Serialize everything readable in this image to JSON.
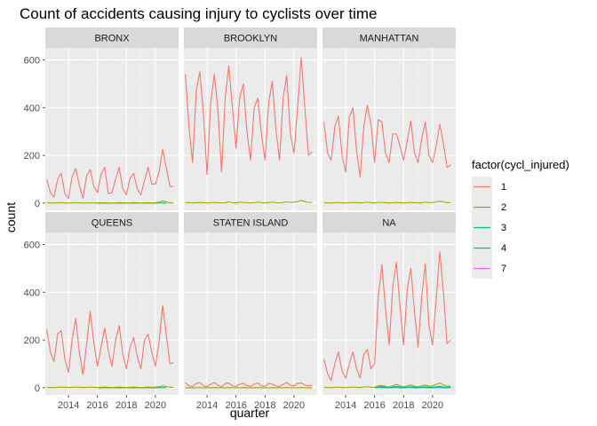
{
  "chart_data": {
    "type": "line",
    "title": "Count of accidents causing injury to cyclists over time",
    "xlabel": "quarter",
    "ylabel": "count",
    "xlim": [
      2012.4,
      2021.6
    ],
    "ylim": [
      -30,
      650
    ],
    "x_ticks": [
      2014,
      2016,
      2018,
      2020
    ],
    "y_ticks": [
      0,
      200,
      400,
      600
    ],
    "grid": true,
    "legend": {
      "title": "factor(cycl_injured)",
      "placement": "right",
      "entries": [
        "1",
        "2",
        "3",
        "4",
        "7"
      ]
    },
    "colors": {
      "1": "#F8766D",
      "2": "#A3A500",
      "3": "#00BF7D",
      "4": "#00B0F6",
      "7": "#E76BF3",
      "panel_bg": "#EBEBEB",
      "strip_bg": "#D9D9D9",
      "grid_major": "#FFFFFF",
      "grid_minor": "#F4F4F4"
    },
    "x_quarters": [
      2012.5,
      2012.75,
      2013,
      2013.25,
      2013.5,
      2013.75,
      2014,
      2014.25,
      2014.5,
      2014.75,
      2015,
      2015.25,
      2015.5,
      2015.75,
      2016,
      2016.25,
      2016.5,
      2016.75,
      2017,
      2017.25,
      2017.5,
      2017.75,
      2018,
      2018.25,
      2018.5,
      2018.75,
      2019,
      2019.25,
      2019.5,
      2019.75,
      2020,
      2020.25,
      2020.5,
      2020.75,
      2021,
      2021.25
    ],
    "panels": [
      {
        "name": "BRONX",
        "series": [
          {
            "name": "1",
            "values": [
              100,
              45,
              25,
              100,
              125,
              40,
              20,
              110,
              145,
              75,
              20,
              115,
              140,
              70,
              45,
              120,
              150,
              40,
              45,
              100,
              150,
              60,
              35,
              105,
              125,
              60,
              35,
              95,
              150,
              80,
              80,
              130,
              225,
              150,
              70,
              70
            ]
          },
          {
            "name": "2",
            "values": [
              2,
              1,
              0,
              1,
              2,
              1,
              0,
              1,
              2,
              1,
              0,
              1,
              1,
              1,
              0,
              1,
              2,
              1,
              0,
              1,
              2,
              1,
              0,
              1,
              2,
              1,
              0,
              1,
              2,
              1,
              2,
              4,
              10,
              5,
              1,
              1
            ]
          },
          {
            "name": "3",
            "values": [
              null,
              null,
              null,
              null,
              null,
              null,
              null,
              null,
              null,
              null,
              null,
              null,
              null,
              null,
              1,
              0,
              1,
              0,
              0,
              1,
              0,
              0,
              1,
              0,
              0,
              1,
              0,
              0,
              1,
              0,
              0,
              1,
              1,
              0,
              null,
              null
            ]
          }
        ]
      },
      {
        "name": "BROOKLYN",
        "series": [
          {
            "name": "1",
            "values": [
              540,
              320,
              170,
              470,
              550,
              370,
              120,
              420,
              540,
              390,
              130,
              440,
              575,
              400,
              230,
              440,
              500,
              300,
              180,
              400,
              440,
              290,
              180,
              420,
              510,
              310,
              180,
              440,
              535,
              290,
              210,
              400,
              610,
              400,
              200,
              215
            ]
          },
          {
            "name": "2",
            "values": [
              3,
              2,
              1,
              2,
              3,
              2,
              1,
              1,
              3,
              2,
              1,
              2,
              5,
              2,
              1,
              4,
              3,
              2,
              1,
              2,
              4,
              2,
              1,
              3,
              4,
              2,
              1,
              3,
              5,
              3,
              4,
              6,
              12,
              6,
              3,
              3
            ]
          }
        ]
      },
      {
        "name": "MANHATTAN",
        "series": [
          {
            "name": "1",
            "values": [
              340,
              210,
              180,
              320,
              365,
              200,
              130,
              360,
              400,
              220,
              110,
              320,
              410,
              330,
              170,
              350,
              340,
              210,
              170,
              290,
              290,
              240,
              180,
              260,
              345,
              210,
              170,
              270,
              340,
              200,
              170,
              240,
              330,
              250,
              150,
              160
            ]
          },
          {
            "name": "2",
            "values": [
              2,
              1,
              1,
              2,
              3,
              1,
              1,
              2,
              3,
              2,
              1,
              2,
              4,
              2,
              1,
              3,
              3,
              2,
              1,
              2,
              3,
              2,
              1,
              2,
              3,
              2,
              1,
              2,
              4,
              2,
              3,
              4,
              8,
              5,
              2,
              2
            ]
          }
        ]
      },
      {
        "name": "QUEENS",
        "series": [
          {
            "name": "1",
            "values": [
              245,
              150,
              110,
              225,
              240,
              120,
              65,
              200,
              290,
              150,
              55,
              180,
              320,
              190,
              90,
              170,
              250,
              155,
              90,
              200,
              260,
              140,
              80,
              170,
              210,
              130,
              80,
              200,
              225,
              150,
              90,
              190,
              345,
              225,
              100,
              105
            ]
          },
          {
            "name": "2",
            "values": [
              2,
              1,
              1,
              2,
              3,
              2,
              1,
              2,
              3,
              2,
              1,
              2,
              3,
              2,
              1,
              2,
              3,
              2,
              1,
              2,
              3,
              2,
              1,
              2,
              3,
              2,
              1,
              2,
              3,
              2,
              3,
              4,
              8,
              5,
              2,
              2
            ]
          },
          {
            "name": "3",
            "values": [
              null,
              null,
              null,
              null,
              null,
              null,
              null,
              null,
              null,
              null,
              null,
              null,
              null,
              null,
              1,
              0,
              1,
              0,
              0,
              1,
              0,
              0,
              1,
              0,
              0,
              1,
              0,
              0,
              1,
              0,
              0,
              1,
              1,
              0,
              null,
              null
            ]
          }
        ]
      },
      {
        "name": "STATEN ISLAND",
        "series": [
          {
            "name": "1",
            "values": [
              22,
              8,
              5,
              18,
              22,
              8,
              5,
              15,
              22,
              10,
              4,
              18,
              20,
              8,
              5,
              15,
              18,
              10,
              5,
              15,
              20,
              8,
              5,
              18,
              15,
              8,
              5,
              15,
              22,
              10,
              8,
              18,
              20,
              12,
              8,
              10
            ]
          },
          {
            "name": "2",
            "values": [
              0,
              0,
              0,
              0,
              1,
              0,
              0,
              0,
              1,
              0,
              0,
              0,
              1,
              0,
              0,
              0,
              1,
              0,
              0,
              0,
              1,
              0,
              0,
              0,
              1,
              0,
              0,
              0,
              1,
              0,
              0,
              0,
              1,
              0,
              0,
              0
            ]
          }
        ]
      },
      {
        "name": "NA",
        "series": [
          {
            "name": "1",
            "values": [
              120,
              60,
              30,
              100,
              150,
              70,
              40,
              100,
              150,
              80,
              40,
              140,
              160,
              80,
              100,
              380,
              515,
              330,
              180,
              420,
              525,
              340,
              180,
              410,
              500,
              320,
              170,
              380,
              520,
              260,
              180,
              370,
              570,
              400,
              185,
              200
            ]
          },
          {
            "name": "2",
            "values": [
              2,
              1,
              1,
              2,
              3,
              1,
              1,
              2,
              3,
              2,
              1,
              3,
              4,
              2,
              3,
              8,
              10,
              6,
              3,
              8,
              14,
              8,
              4,
              8,
              12,
              6,
              4,
              8,
              12,
              6,
              8,
              14,
              20,
              12,
              6,
              8
            ]
          },
          {
            "name": "3",
            "values": [
              null,
              null,
              null,
              null,
              null,
              null,
              null,
              null,
              null,
              null,
              null,
              null,
              null,
              null,
              1,
              3,
              5,
              2,
              1,
              3,
              5,
              3,
              1,
              3,
              4,
              2,
              1,
              3,
              4,
              2,
              2,
              4,
              6,
              3,
              2,
              3
            ]
          },
          {
            "name": "4",
            "values": [
              null,
              null,
              null,
              null,
              null,
              null,
              null,
              null,
              null,
              null,
              null,
              null,
              null,
              null,
              0,
              1,
              1,
              0,
              0,
              1,
              1,
              0,
              0,
              1,
              1,
              0,
              0,
              1,
              1,
              0,
              0,
              1,
              1,
              0,
              0,
              1
            ]
          }
        ]
      }
    ]
  }
}
